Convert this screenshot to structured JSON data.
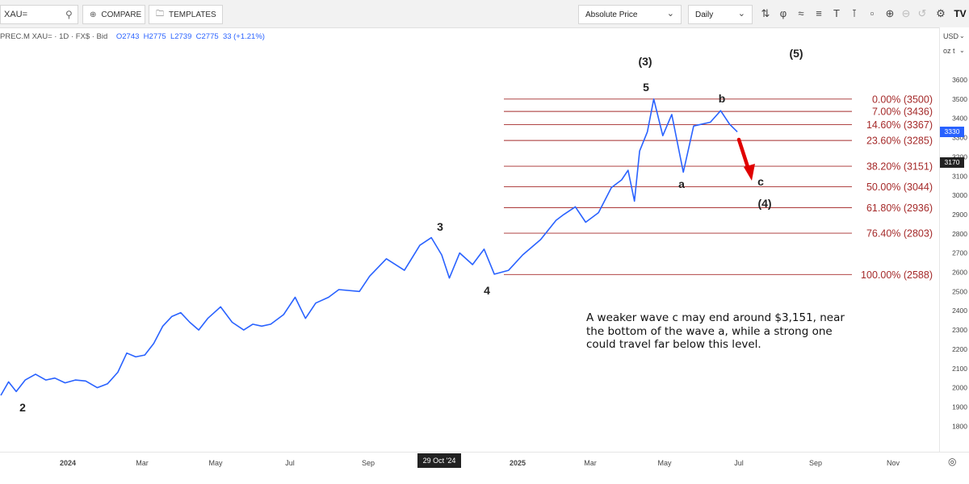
{
  "toolbar": {
    "symbol": "XAU=",
    "compare_label": "COMPARE",
    "templates_label": "TEMPLATES",
    "price_mode": "Absolute Price",
    "interval": "Daily",
    "tool_icons": [
      "candles-icon",
      "indicators-icon",
      "waves-icon",
      "fib-icon",
      "text-icon",
      "trend-tool-icon",
      "shapes-icon",
      "zoom-in-icon",
      "zoom-out-icon",
      "undo-icon",
      "settings-icon",
      "tradingview-logo-icon"
    ]
  },
  "legend": {
    "instrument": "PREC.M XAU= · 1D · FX$ · Bid",
    "open": "O2743",
    "high": "H2775",
    "low": "L2739",
    "close": "C2775",
    "change": "33 (+1.21%)"
  },
  "right_panel": {
    "currency": "USD",
    "unit": "oz t"
  },
  "price_badges": [
    {
      "value": "3330",
      "color": "#2962ff"
    },
    {
      "value": "3170",
      "color": "#222222"
    }
  ],
  "axis": {
    "y_ticks": [
      "3600",
      "3500",
      "3400",
      "3300",
      "3200",
      "3100",
      "3000",
      "2900",
      "2800",
      "2700",
      "2600",
      "2500",
      "2400",
      "2300",
      "2200",
      "2100",
      "2000",
      "1900",
      "1800"
    ],
    "x_ticks": [
      "2024",
      "Mar",
      "May",
      "Jul",
      "Sep",
      "2025",
      "Mar",
      "May",
      "Jul",
      "Sep",
      "Nov"
    ],
    "cursor_date": "29 Oct '24"
  },
  "fib_levels": [
    {
      "label": "0.00% (3500)",
      "price": 3500
    },
    {
      "label": "7.00% (3436)",
      "price": 3436
    },
    {
      "label": "14.60% (3367)",
      "price": 3367
    },
    {
      "label": "23.60% (3285)",
      "price": 3285
    },
    {
      "label": "38.20% (3151)",
      "price": 3151
    },
    {
      "label": "50.00% (3044)",
      "price": 3044
    },
    {
      "label": "61.80% (2936)",
      "price": 2936
    },
    {
      "label": "76.40% (2803)",
      "price": 2803
    },
    {
      "label": "100.00% (2588)",
      "price": 2588
    }
  ],
  "wave_labels": {
    "w2": "2",
    "w3": "3",
    "w4": "4",
    "w5": "5",
    "big3": "(3)",
    "big4": "(4)",
    "big5": "(5)",
    "a": "a",
    "b": "b",
    "c": "c"
  },
  "note": "A weaker wave c may end around $3,151, near the bottom of the wave a, while a strong one could travel far below this level.",
  "colors": {
    "price_line": "#2962ff",
    "fib": "#a52a2a",
    "arrow": "#e00000"
  },
  "chart_data": {
    "type": "line",
    "ylim": [
      1750,
      3650
    ],
    "x_range": [
      "2023-12-01",
      "2025-11-30"
    ],
    "series": [
      {
        "points": [
          [
            "2023-12-01",
            1960
          ],
          [
            "2023-12-07",
            2030
          ],
          [
            "2023-12-13",
            1980
          ],
          [
            "2023-12-20",
            2040
          ],
          [
            "2023-12-28",
            2070
          ],
          [
            "2024-01-05",
            2040
          ],
          [
            "2024-01-12",
            2050
          ],
          [
            "2024-01-20",
            2025
          ],
          [
            "2024-01-28",
            2040
          ],
          [
            "2024-02-05",
            2035
          ],
          [
            "2024-02-14",
            2000
          ],
          [
            "2024-02-22",
            2020
          ],
          [
            "2024-03-01",
            2080
          ],
          [
            "2024-03-08",
            2180
          ],
          [
            "2024-03-15",
            2160
          ],
          [
            "2024-03-22",
            2170
          ],
          [
            "2024-03-29",
            2230
          ],
          [
            "2024-04-05",
            2320
          ],
          [
            "2024-04-12",
            2370
          ],
          [
            "2024-04-19",
            2390
          ],
          [
            "2024-04-26",
            2340
          ],
          [
            "2024-05-03",
            2300
          ],
          [
            "2024-05-10",
            2360
          ],
          [
            "2024-05-20",
            2420
          ],
          [
            "2024-05-29",
            2340
          ],
          [
            "2024-06-07",
            2300
          ],
          [
            "2024-06-14",
            2330
          ],
          [
            "2024-06-21",
            2320
          ],
          [
            "2024-06-28",
            2330
          ],
          [
            "2024-07-08",
            2380
          ],
          [
            "2024-07-17",
            2470
          ],
          [
            "2024-07-25",
            2360
          ],
          [
            "2024-08-02",
            2440
          ],
          [
            "2024-08-12",
            2470
          ],
          [
            "2024-08-20",
            2510
          ],
          [
            "2024-09-05",
            2500
          ],
          [
            "2024-09-13",
            2580
          ],
          [
            "2024-09-26",
            2670
          ],
          [
            "2024-10-10",
            2610
          ],
          [
            "2024-10-22",
            2740
          ],
          [
            "2024-10-31",
            2780
          ],
          [
            "2024-11-08",
            2690
          ],
          [
            "2024-11-14",
            2570
          ],
          [
            "2024-11-22",
            2700
          ],
          [
            "2024-12-02",
            2640
          ],
          [
            "2024-12-11",
            2720
          ],
          [
            "2024-12-19",
            2590
          ],
          [
            "2024-12-30",
            2610
          ],
          [
            "2025-01-10",
            2690
          ],
          [
            "2025-01-24",
            2770
          ],
          [
            "2025-02-05",
            2870
          ],
          [
            "2025-02-11",
            2900
          ],
          [
            "2025-02-20",
            2940
          ],
          [
            "2025-02-28",
            2860
          ],
          [
            "2025-03-10",
            2910
          ],
          [
            "2025-03-20",
            3040
          ],
          [
            "2025-03-28",
            3080
          ],
          [
            "2025-04-02",
            3130
          ],
          [
            "2025-04-07",
            2970
          ],
          [
            "2025-04-11",
            3230
          ],
          [
            "2025-04-17",
            3330
          ],
          [
            "2025-04-22",
            3500
          ],
          [
            "2025-04-29",
            3310
          ],
          [
            "2025-05-06",
            3420
          ],
          [
            "2025-05-15",
            3120
          ],
          [
            "2025-05-23",
            3360
          ],
          [
            "2025-06-05",
            3380
          ],
          [
            "2025-06-13",
            3440
          ],
          [
            "2025-06-20",
            3370
          ],
          [
            "2025-06-26",
            3330
          ]
        ]
      }
    ]
  }
}
